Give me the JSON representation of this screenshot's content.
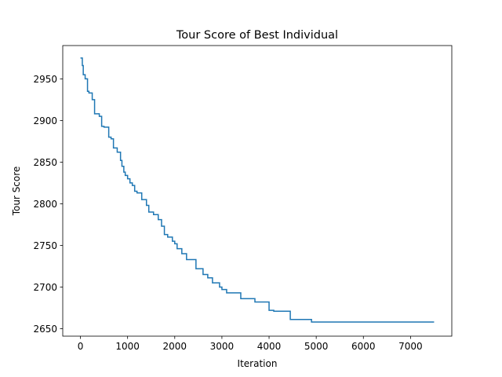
{
  "chart_data": {
    "type": "line",
    "title": "Tour Score of Best Individual",
    "xlabel": "Iteration",
    "ylabel": "Tour Score",
    "xlim": [
      -375,
      7875
    ],
    "ylim": [
      2641,
      2990
    ],
    "grid": false,
    "xticks": [
      0,
      1000,
      2000,
      3000,
      4000,
      5000,
      6000,
      7000
    ],
    "yticks": [
      2650,
      2700,
      2750,
      2800,
      2850,
      2900,
      2950
    ],
    "series": [
      {
        "color": "#1f77b4",
        "step": true,
        "x": [
          0,
          40,
          60,
          100,
          150,
          180,
          250,
          300,
          400,
          450,
          500,
          600,
          650,
          700,
          780,
          850,
          880,
          920,
          950,
          1000,
          1050,
          1100,
          1150,
          1200,
          1300,
          1400,
          1450,
          1550,
          1650,
          1720,
          1780,
          1850,
          1950,
          2000,
          2050,
          2150,
          2250,
          2300,
          2450,
          2600,
          2700,
          2800,
          2950,
          3000,
          3100,
          3400,
          3700,
          4000,
          4100,
          4450,
          4900,
          7500
        ],
        "values": [
          2975,
          2966,
          2955,
          2950,
          2935,
          2933,
          2925,
          2908,
          2905,
          2893,
          2892,
          2880,
          2878,
          2867,
          2862,
          2852,
          2845,
          2838,
          2834,
          2830,
          2825,
          2822,
          2815,
          2813,
          2805,
          2798,
          2790,
          2787,
          2781,
          2773,
          2763,
          2760,
          2755,
          2752,
          2746,
          2740,
          2733,
          2733,
          2722,
          2715,
          2711,
          2705,
          2700,
          2697,
          2693,
          2686,
          2682,
          2672,
          2671,
          2661,
          2658,
          2658
        ]
      }
    ]
  }
}
